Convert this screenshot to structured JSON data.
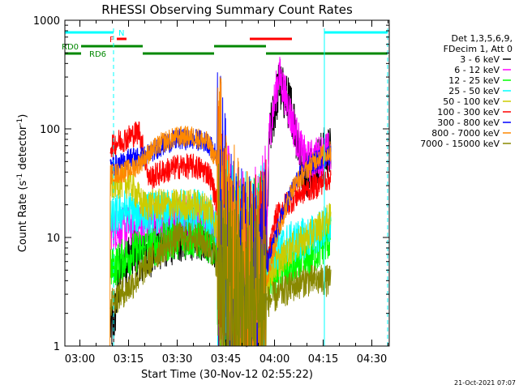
{
  "chart_data": {
    "type": "line",
    "title": "RHESSI Observing Summary Count Rates",
    "xlabel": "Start Time (30-Nov-12 02:55:22)",
    "ylabel_main": "Count Rate (s",
    "ylabel_sup1": "-1",
    "ylabel_mid": " detector",
    "ylabel_sup2": "-1",
    "ylabel_end": ")",
    "x_unit": "minutes after 02:55:22",
    "xlim": [
      0,
      100
    ],
    "ylim": [
      1,
      1000
    ],
    "yscale": "log",
    "x_ticks": [
      {
        "label": "03:00",
        "minute": 4.63
      },
      {
        "label": "03:15",
        "minute": 19.63
      },
      {
        "label": "03:30",
        "minute": 34.63
      },
      {
        "label": "03:45",
        "minute": 49.63
      },
      {
        "label": "04:00",
        "minute": 64.63
      },
      {
        "label": "04:15",
        "minute": 79.63
      },
      {
        "label": "04:30",
        "minute": 94.63
      }
    ],
    "y_ticks": [
      {
        "label": "1",
        "value": 1
      },
      {
        "label": "10",
        "value": 10
      },
      {
        "label": "100",
        "value": 100
      },
      {
        "label": "1000",
        "value": 1000
      }
    ],
    "legend": {
      "position": "right",
      "header": [
        "Det 1,3,5,6,9,",
        "FDecim 1, Att 0"
      ],
      "entries": [
        {
          "label": "3 - 6 keV",
          "color": "#000000"
        },
        {
          "label": "6 - 12 keV",
          "color": "#ff00ff"
        },
        {
          "label": "12 - 25 keV",
          "color": "#00ff00"
        },
        {
          "label": "25 - 50 keV",
          "color": "#00ffff"
        },
        {
          "label": "50 - 100 keV",
          "color": "#cccc00"
        },
        {
          "label": "100 - 300 keV",
          "color": "#ff0000"
        },
        {
          "label": "300 - 800 keV",
          "color": "#0000ff"
        },
        {
          "label": "800 - 7000 keV",
          "color": "#ff8800"
        },
        {
          "label": "7000 - 15000 keV",
          "color": "#888800"
        }
      ]
    },
    "series": [
      {
        "name": "3 - 6 keV",
        "color": "#000000",
        "noise": 0.25,
        "x": [
          14,
          15,
          17,
          20,
          25,
          30,
          35,
          40,
          45,
          47,
          49,
          52,
          56,
          60,
          62,
          63,
          66,
          70,
          72,
          73,
          75,
          78,
          80,
          82
        ],
        "y": [
          1.5,
          1.5,
          5,
          7,
          7,
          9,
          10,
          11,
          10,
          8,
          5,
          3,
          2.5,
          3,
          4,
          80,
          250,
          150,
          70,
          45,
          40,
          50,
          60,
          60
        ]
      },
      {
        "name": "6 - 12 keV",
        "color": "#ff00ff",
        "noise": 0.2,
        "x": [
          14,
          16,
          18,
          20,
          24,
          30,
          35,
          40,
          45,
          47,
          49,
          52,
          56,
          60,
          62,
          63,
          66,
          68,
          70,
          73,
          75,
          78,
          80,
          82
        ],
        "y": [
          12,
          12,
          12,
          13,
          13,
          15,
          15,
          16,
          15,
          12,
          8,
          4,
          3,
          4,
          6,
          90,
          320,
          200,
          120,
          60,
          50,
          55,
          60,
          60
        ]
      },
      {
        "name": "12 - 25 keV",
        "color": "#00ff00",
        "noise": 0.2,
        "x": [
          14,
          17,
          20,
          25,
          30,
          35,
          40,
          45,
          48,
          50,
          52,
          56,
          60,
          62,
          66,
          70,
          75,
          80,
          82
        ],
        "y": [
          5,
          6,
          7,
          8,
          9,
          10,
          10,
          9,
          6,
          4,
          3,
          3,
          3,
          4,
          5,
          5,
          6,
          9,
          10
        ]
      },
      {
        "name": "25 - 50 keV",
        "color": "#00ffff",
        "noise": 0.2,
        "x": [
          14,
          16,
          18,
          20,
          24,
          30,
          35,
          40,
          45,
          47,
          50,
          53,
          57,
          60,
          63,
          66,
          70,
          75,
          80,
          82
        ],
        "y": [
          14,
          16,
          18,
          17,
          17,
          17,
          18,
          18,
          16,
          12,
          6,
          4,
          3,
          4,
          6,
          8,
          9,
          10,
          12,
          13
        ]
      },
      {
        "name": "50 - 100 keV",
        "color": "#cccc00",
        "noise": 0.15,
        "x": [
          14,
          16,
          20,
          24,
          30,
          35,
          40,
          45,
          47,
          50,
          54,
          58,
          62,
          66,
          70,
          75,
          80,
          82
        ],
        "y": [
          30,
          32,
          32,
          20,
          20,
          20,
          20,
          18,
          12,
          5,
          3,
          3,
          4,
          6,
          8,
          10,
          14,
          15
        ]
      },
      {
        "name": "100 - 300 keV",
        "color": "#ff0000",
        "noise": 0.12,
        "x": [
          14,
          18,
          20,
          23,
          26,
          30,
          35,
          40,
          44,
          45,
          47,
          50,
          53,
          58,
          62,
          65,
          68,
          70,
          72,
          75,
          78,
          80,
          82
        ],
        "y": [
          70,
          80,
          85,
          95,
          35,
          40,
          45,
          45,
          40,
          35,
          20,
          5,
          3,
          3,
          5,
          15,
          20,
          22,
          25,
          28,
          30,
          34,
          36
        ]
      },
      {
        "name": "300 - 800 keV",
        "color": "#0000ff",
        "noise": 0.1,
        "x": [
          14,
          18,
          20,
          24,
          28,
          32,
          35,
          40,
          44,
          47,
          50,
          53,
          57,
          61,
          64,
          68,
          72,
          75,
          78,
          82
        ],
        "y": [
          45,
          48,
          55,
          55,
          65,
          75,
          80,
          80,
          75,
          55,
          8,
          4,
          3,
          4,
          8,
          20,
          35,
          45,
          52,
          58
        ]
      },
      {
        "name": "800 - 7000 keV",
        "color": "#ff8800",
        "noise": 0.1,
        "x": [
          13.9,
          14,
          18,
          22,
          26,
          30,
          35,
          40,
          44,
          47,
          50,
          54,
          58,
          62,
          66,
          70,
          74,
          78,
          82
        ],
        "y": [
          1,
          38,
          40,
          45,
          60,
          75,
          85,
          85,
          75,
          50,
          10,
          4,
          3,
          4,
          12,
          28,
          40,
          55,
          62
        ]
      },
      {
        "name": "7000 - 15000 keV",
        "color": "#888800",
        "noise": 0.15,
        "x": [
          14,
          17,
          20,
          23,
          26,
          30,
          35,
          40,
          45,
          48,
          50,
          53,
          58,
          62,
          66,
          70,
          74,
          78,
          82
        ],
        "y": [
          2.5,
          3,
          3.5,
          4.5,
          6,
          8,
          10,
          10,
          8,
          5,
          3,
          2,
          2,
          2.5,
          3,
          3.5,
          4,
          4,
          4
        ]
      }
    ],
    "flag_lines": [
      {
        "label": "N",
        "color": "#00ffff",
        "segments": [
          [
            0,
            15
          ],
          [
            80,
            99.5
          ]
        ]
      },
      {
        "label": "F",
        "color": "#ff0000",
        "segments": [
          [
            16,
            19
          ],
          [
            57,
            70
          ]
        ]
      },
      {
        "label": "RD0",
        "color": "#008800",
        "segments": [
          [
            5,
            24
          ],
          [
            46,
            62
          ]
        ]
      },
      {
        "label": "RD6",
        "color": "#008800",
        "segments": [
          [
            0,
            5
          ],
          [
            24,
            46
          ],
          [
            62,
            99.5
          ]
        ]
      }
    ],
    "vertical_markers": [
      {
        "minute": 15,
        "style": "dashed",
        "color": "#00ffff"
      },
      {
        "minute": 80,
        "style": "solid",
        "color": "#00ffff"
      },
      {
        "minute": 99.5,
        "style": "dashed",
        "color": "#00ffff"
      }
    ],
    "footer_date": "21-Oct-2021 07:07"
  }
}
